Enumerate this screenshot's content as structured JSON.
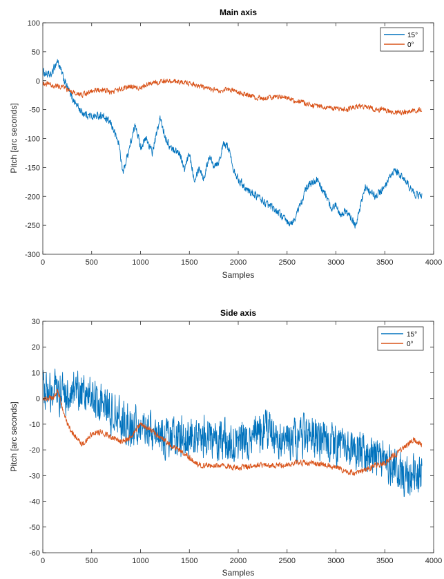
{
  "chart_data": [
    {
      "type": "line",
      "title": "Main axis",
      "xlabel": "Samples",
      "ylabel": "Pitch [arc seconds]",
      "xlim": [
        0,
        4000
      ],
      "ylim": [
        -300,
        100
      ],
      "xticks": [
        0,
        500,
        1000,
        1500,
        2000,
        2500,
        3000,
        3500,
        4000
      ],
      "yticks": [
        -300,
        -250,
        -200,
        -150,
        -100,
        -50,
        0,
        50,
        100
      ],
      "grid": false,
      "legend_position": "top-right",
      "series": [
        {
          "name": "15°",
          "color": "#0072BD",
          "noise": 9,
          "x": [
            0,
            80,
            150,
            220,
            300,
            400,
            500,
            600,
            700,
            780,
            820,
            880,
            950,
            1000,
            1060,
            1120,
            1200,
            1250,
            1300,
            1400,
            1450,
            1500,
            1550,
            1600,
            1650,
            1700,
            1750,
            1800,
            1850,
            1900,
            1950,
            2000,
            2100,
            2200,
            2300,
            2400,
            2500,
            2550,
            2600,
            2700,
            2800,
            2900,
            2950,
            3000,
            3050,
            3100,
            3200,
            3300,
            3400,
            3500,
            3600,
            3700,
            3800,
            3880
          ],
          "y": [
            15,
            8,
            35,
            0,
            -30,
            -55,
            -62,
            -60,
            -75,
            -110,
            -160,
            -120,
            -75,
            -115,
            -100,
            -125,
            -65,
            -95,
            -115,
            -125,
            -155,
            -125,
            -170,
            -150,
            -170,
            -130,
            -145,
            -140,
            -110,
            -115,
            -150,
            -170,
            -190,
            -200,
            -215,
            -225,
            -245,
            -248,
            -230,
            -185,
            -170,
            -200,
            -220,
            -215,
            -230,
            -225,
            -250,
            -185,
            -200,
            -185,
            -155,
            -170,
            -195,
            -200
          ]
        },
        {
          "name": "0°",
          "color": "#D95319",
          "noise": 6,
          "x": [
            0,
            100,
            200,
            300,
            400,
            500,
            600,
            700,
            800,
            900,
            1000,
            1100,
            1200,
            1300,
            1400,
            1500,
            1600,
            1700,
            1800,
            1900,
            2000,
            2100,
            2200,
            2300,
            2400,
            2500,
            2600,
            2700,
            2800,
            2900,
            3000,
            3100,
            3200,
            3300,
            3400,
            3500,
            3600,
            3700,
            3800,
            3880
          ],
          "y": [
            -5,
            -8,
            -10,
            -20,
            -25,
            -18,
            -15,
            -20,
            -15,
            -10,
            -12,
            -5,
            -2,
            0,
            -2,
            -5,
            -10,
            -15,
            -18,
            -15,
            -20,
            -25,
            -30,
            -30,
            -28,
            -30,
            -35,
            -40,
            -45,
            -45,
            -48,
            -50,
            -45,
            -45,
            -50,
            -50,
            -55,
            -55,
            -52,
            -50
          ]
        }
      ]
    },
    {
      "type": "line",
      "title": "Side axis",
      "xlabel": "Samples",
      "ylabel": "Pitch [arc seconds]",
      "xlim": [
        0,
        4000
      ],
      "ylim": [
        -60,
        30
      ],
      "xticks": [
        0,
        500,
        1000,
        1500,
        2000,
        2500,
        3000,
        3500,
        4000
      ],
      "yticks": [
        -60,
        -50,
        -40,
        -30,
        -20,
        -10,
        0,
        10,
        20,
        30
      ],
      "grid": false,
      "legend_position": "top-right",
      "series": [
        {
          "name": "15°",
          "color": "#0072BD",
          "noise": 11,
          "x": [
            0,
            200,
            400,
            600,
            800,
            1000,
            1200,
            1400,
            1600,
            1800,
            2000,
            2200,
            2300,
            2400,
            2600,
            2800,
            3000,
            3200,
            3400,
            3600,
            3700,
            3750,
            3800,
            3880
          ],
          "y": [
            5,
            2,
            3,
            -3,
            -8,
            -12,
            -15,
            -15,
            -15,
            -15,
            -17,
            -14,
            -12,
            -15,
            -15,
            -15,
            -18,
            -20,
            -22,
            -27,
            -30,
            -33,
            -28,
            -30
          ]
        },
        {
          "name": "0°",
          "color": "#D95319",
          "noise": 1.5,
          "x": [
            0,
            100,
            150,
            250,
            350,
            400,
            500,
            600,
            700,
            800,
            900,
            1000,
            1100,
            1200,
            1300,
            1400,
            1500,
            1600,
            1700,
            1800,
            2000,
            2200,
            2400,
            2600,
            2800,
            3000,
            3100,
            3200,
            3300,
            3400,
            3500,
            3600,
            3700,
            3800,
            3880
          ],
          "y": [
            0,
            0,
            3,
            -10,
            -16,
            -18,
            -14,
            -13,
            -15,
            -17,
            -15,
            -10,
            -12,
            -15,
            -18,
            -20,
            -23,
            -26,
            -26,
            -26,
            -27,
            -26,
            -26,
            -25,
            -25,
            -27,
            -28,
            -29,
            -28,
            -26,
            -25,
            -22,
            -19,
            -16,
            -18
          ]
        }
      ]
    }
  ]
}
